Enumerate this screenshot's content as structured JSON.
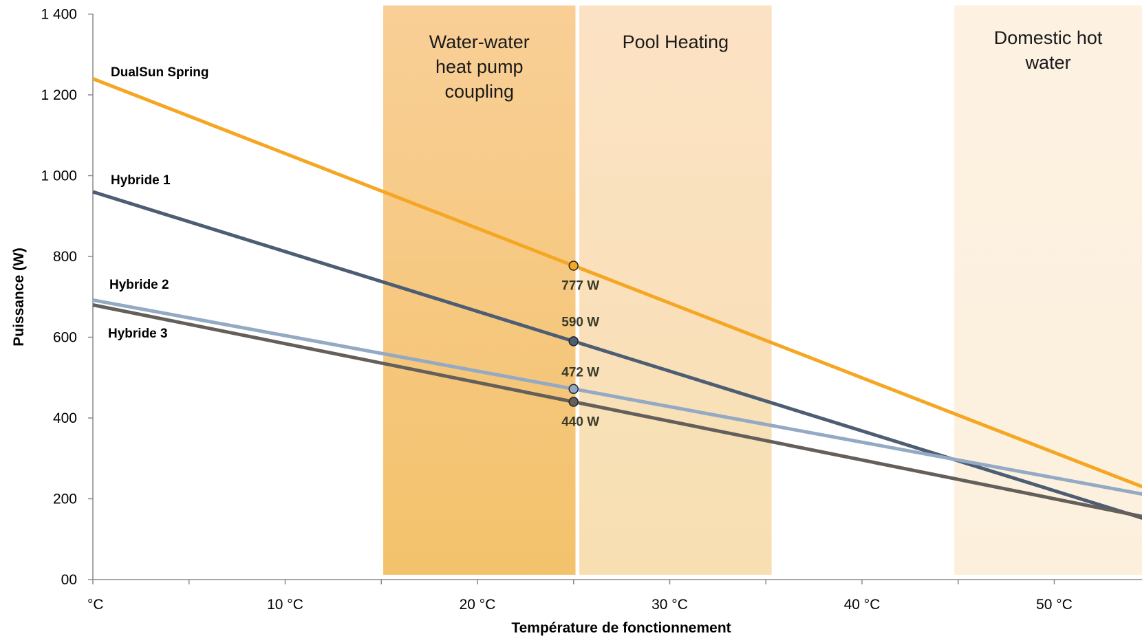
{
  "chart_data": {
    "type": "line",
    "xlabel": "Température de fonctionnement",
    "ylabel": "Puissance (W)",
    "xlim": [
      0,
      55
    ],
    "ylim": [
      0,
      1400
    ],
    "x_ticks": [
      {
        "value": 0,
        "label": "°C"
      },
      {
        "value": 10,
        "label": "10 °C"
      },
      {
        "value": 20,
        "label": "20 °C"
      },
      {
        "value": 30,
        "label": "30 °C"
      },
      {
        "value": 40,
        "label": "40 °C"
      },
      {
        "value": 50,
        "label": "50 °C"
      }
    ],
    "y_ticks": [
      {
        "value": 0,
        "label": "00"
      },
      {
        "value": 200,
        "label": "200"
      },
      {
        "value": 400,
        "label": "400"
      },
      {
        "value": 600,
        "label": "600"
      },
      {
        "value": 800,
        "label": "800"
      },
      {
        "value": 1000,
        "label": "1 000"
      },
      {
        "value": 1200,
        "label": "1 200"
      },
      {
        "value": 1400,
        "label": "1 400"
      }
    ],
    "zones": [
      {
        "label": "Water-water heat pump coupling",
        "lines": [
          "Water-water",
          "heat pump",
          "coupling"
        ],
        "x_start": 15.1,
        "x_end": 25.1,
        "color_top": "#f9cf97",
        "color_bottom": "#f3c26b"
      },
      {
        "label": "Pool Heating",
        "lines": [
          "Pool Heating"
        ],
        "x_start": 25.3,
        "x_end": 35.3,
        "color_top": "#fce2c4",
        "color_bottom": "#f7dfb2"
      },
      {
        "label": "Domestic hot water",
        "lines": [
          "Domestic hot",
          "water"
        ],
        "x_start": 44.8,
        "x_end": 55,
        "color_top": "#fdf1e2",
        "color_bottom": "#fcf0dd"
      }
    ],
    "series": [
      {
        "name": "DualSun Spring",
        "color": "#f5a623",
        "x": [
          0,
          25,
          55
        ],
        "y": [
          1240,
          777,
          222
        ]
      },
      {
        "name": "Hybride 1",
        "color": "#4d5d73",
        "x": [
          0,
          25,
          55
        ],
        "y": [
          960,
          590,
          146
        ]
      },
      {
        "name": "Hybride 2",
        "color": "#93a9c4",
        "x": [
          0,
          25,
          55
        ],
        "y": [
          692,
          472,
          208
        ]
      },
      {
        "name": "Hybride 3",
        "color": "#645f5b",
        "x": [
          0,
          25,
          55
        ],
        "y": [
          680,
          440,
          152
        ]
      }
    ],
    "markers": [
      {
        "series": "DualSun Spring",
        "x": 25,
        "y": 777,
        "label": "777 W"
      },
      {
        "series": "Hybride 1",
        "x": 25,
        "y": 590,
        "label": "590 W"
      },
      {
        "series": "Hybride 2",
        "x": 25,
        "y": 472,
        "label": "472 W"
      },
      {
        "series": "Hybride 3",
        "x": 25,
        "y": 440,
        "label": "440 W"
      }
    ],
    "grid": false,
    "legend": "inline labels at left"
  }
}
